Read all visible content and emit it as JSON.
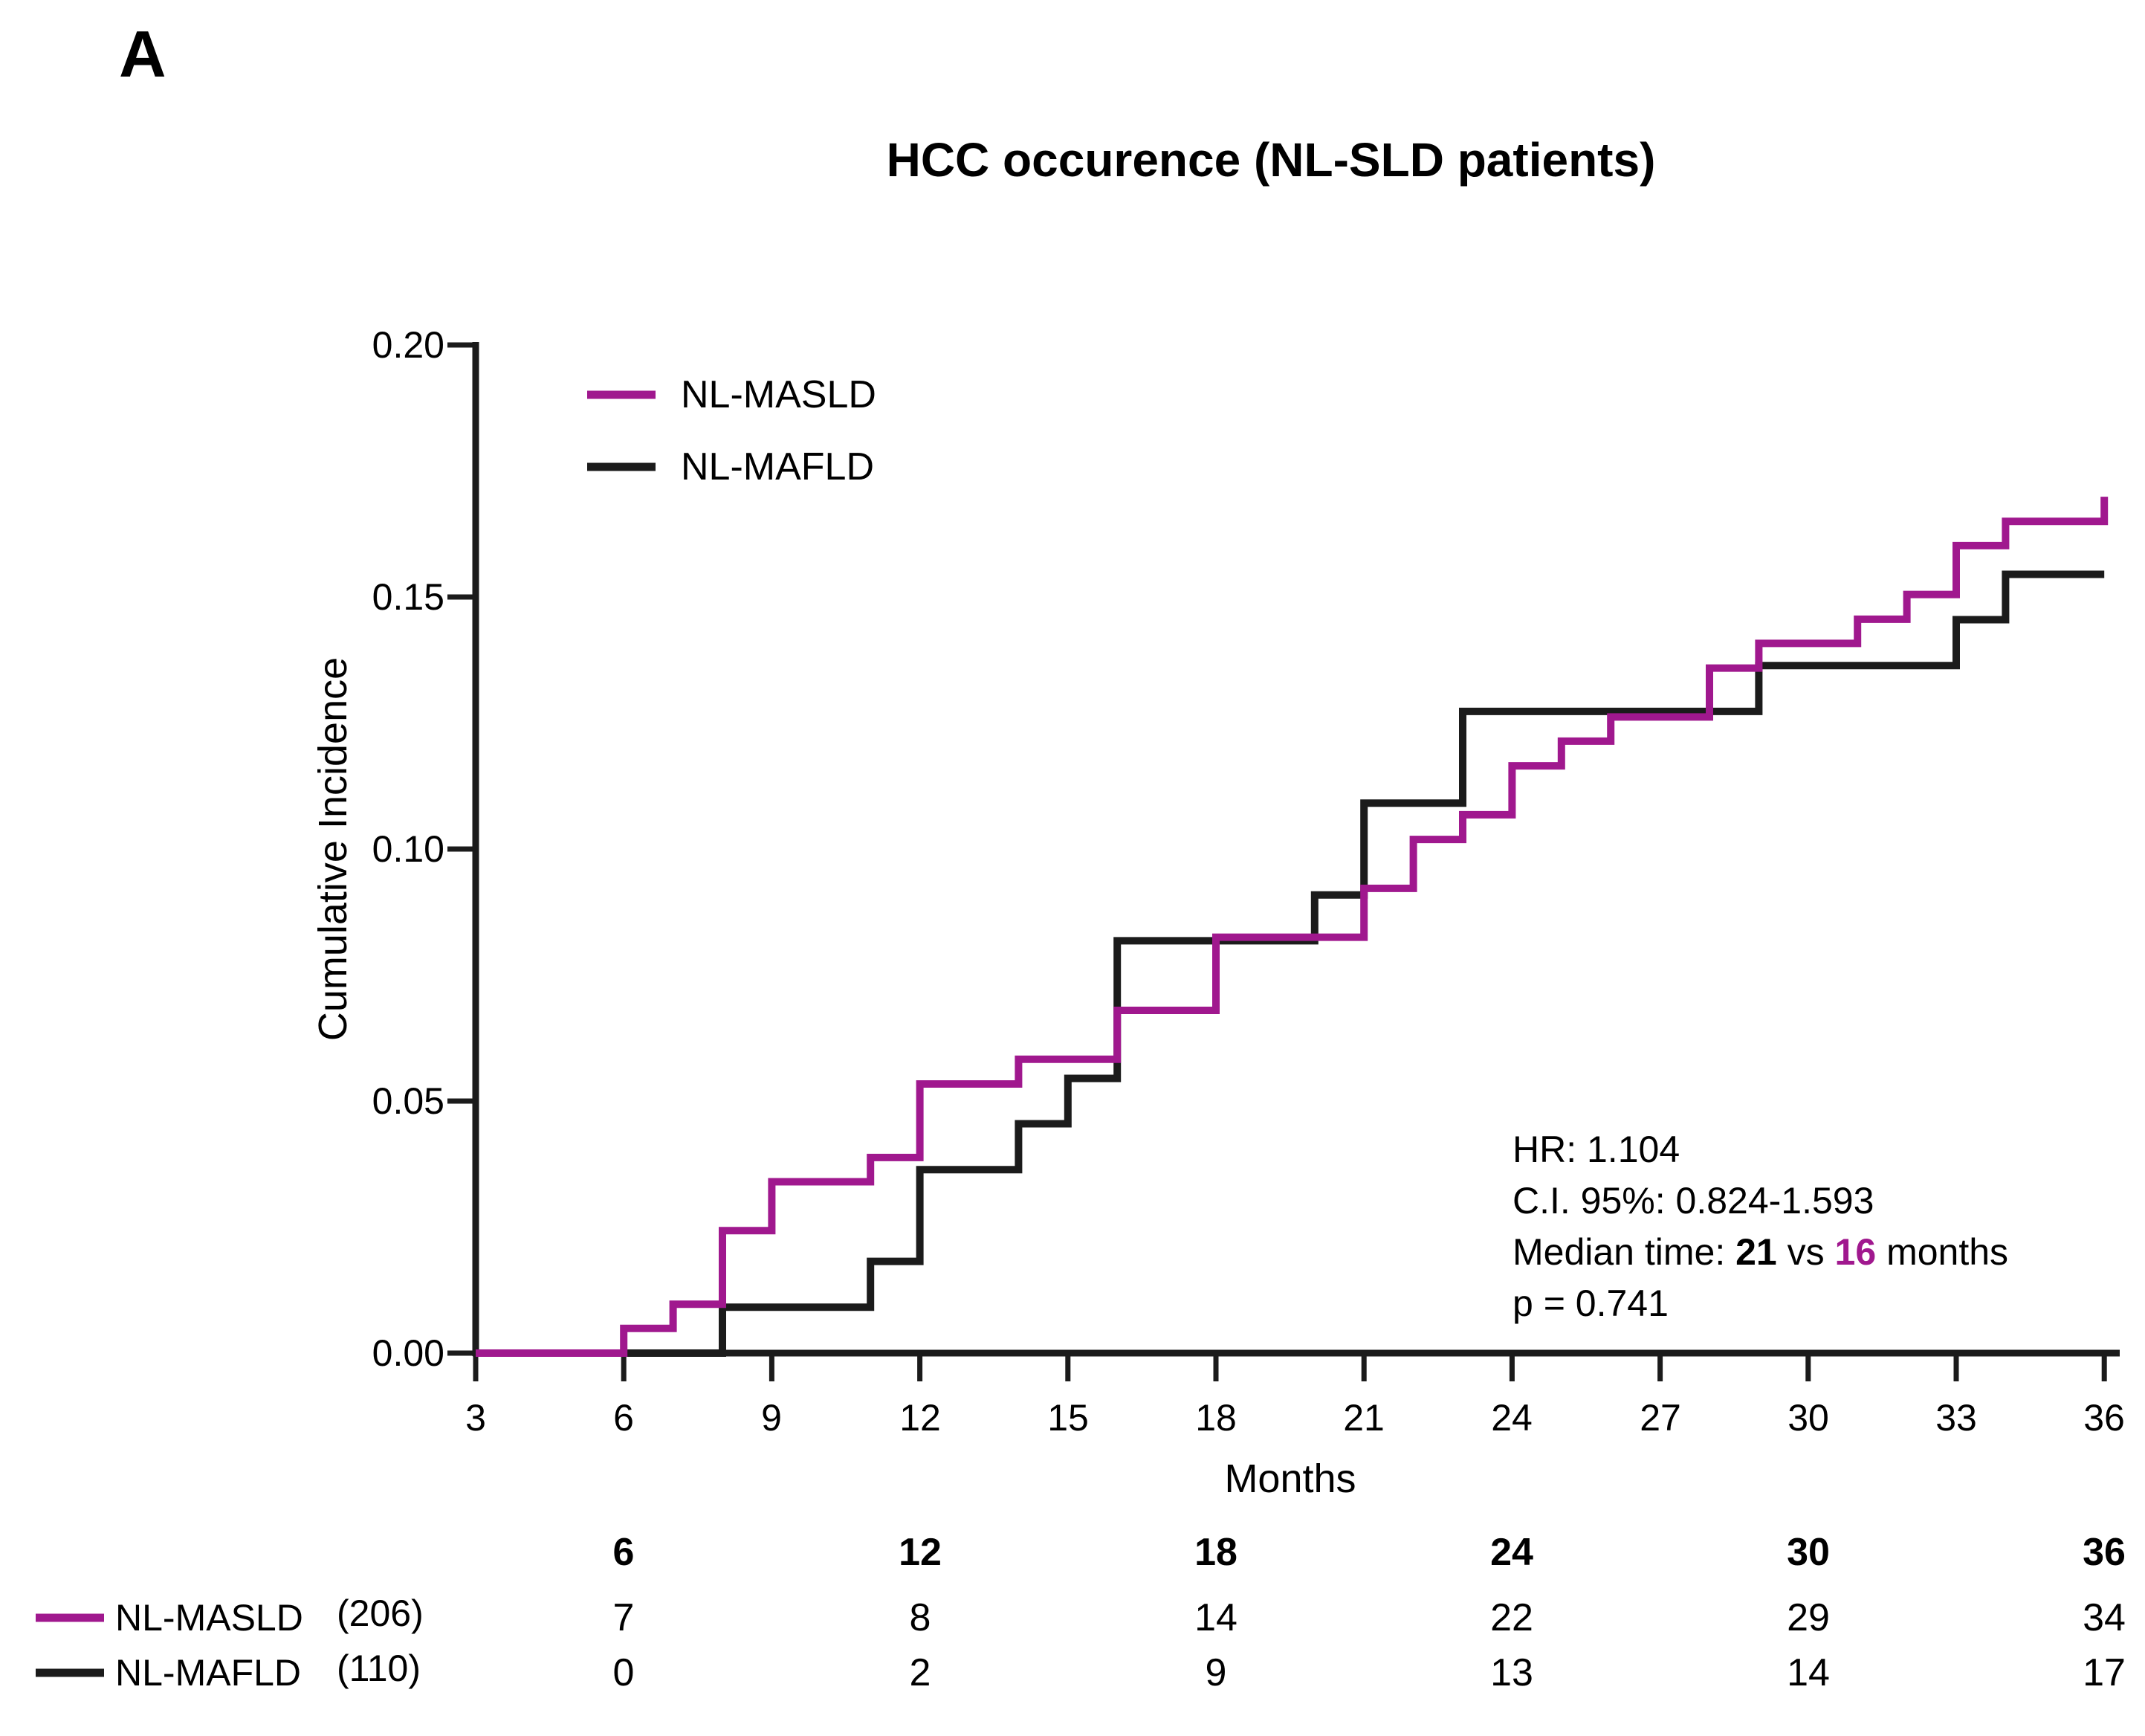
{
  "panel_label": "A",
  "title": "HCC occurence (NL-SLD patients)",
  "legend": {
    "items": [
      {
        "label": "NL-MASLD",
        "color": "#A0188E"
      },
      {
        "label": "NL-MAFLD",
        "color": "#1B1B1B"
      }
    ]
  },
  "y_axis": {
    "label": "Cumulative Incidence",
    "tick_labels": [
      "0.00",
      "0.05",
      "0.10",
      "0.15",
      "0.20"
    ],
    "tick_values": [
      0.0,
      0.05,
      0.1,
      0.15,
      0.2
    ]
  },
  "x_axis": {
    "label": "Months",
    "tick_labels": [
      "3",
      "6",
      "9",
      "12",
      "15",
      "18",
      "21",
      "24",
      "27",
      "30",
      "33",
      "36"
    ],
    "tick_values": [
      3,
      6,
      9,
      12,
      15,
      18,
      21,
      24,
      27,
      30,
      33,
      36
    ]
  },
  "annotation": {
    "hr": "HR: 1.104",
    "ci": "C.I. 95%: 0.824-1.593",
    "median_prefix": "Median time: ",
    "median_masld_months": "21",
    "median_vs": " vs ",
    "median_mafld_months": "16",
    "median_suffix": " months",
    "p": "p = 0.741"
  },
  "risk_table": {
    "column_headers": [
      "6",
      "12",
      "18",
      "24",
      "30",
      "36"
    ],
    "rows": [
      {
        "label": "NL-MASLD",
        "n": "(206)",
        "color": "#A0188E",
        "values": [
          "7",
          "8",
          "14",
          "22",
          "29",
          "34"
        ]
      },
      {
        "label": "NL-MAFLD",
        "n": "(110)",
        "color": "#1B1B1B",
        "values": [
          "0",
          "2",
          "9",
          "13",
          "14",
          "17"
        ]
      }
    ]
  },
  "chart_data": {
    "type": "line",
    "subtype": "step-cumulative-incidence",
    "title": "HCC occurence (NL-SLD patients)",
    "xlabel": "Months",
    "ylabel": "Cumulative Incidence",
    "xlim": [
      3,
      36
    ],
    "ylim": [
      0,
      0.2
    ],
    "grid": false,
    "legend_position": "upper-left-inside",
    "series": [
      {
        "name": "NL-MAFLD",
        "color": "#1B1B1B",
        "n_total": 110,
        "start": [
          3,
          0
        ],
        "steps": [
          [
            8,
            0.0091
          ],
          [
            11,
            0.0182
          ],
          [
            12,
            0.0364
          ],
          [
            14,
            0.0455
          ],
          [
            15,
            0.0545
          ],
          [
            16,
            0.0818
          ],
          [
            20,
            0.0909
          ],
          [
            21,
            0.1091
          ],
          [
            23,
            0.1273
          ],
          [
            29,
            0.1364
          ],
          [
            33,
            0.1455
          ],
          [
            34,
            0.1545
          ]
        ],
        "flat_end_month": 36
      },
      {
        "name": "NL-MASLD",
        "color": "#A0188E",
        "n_total": 206,
        "start": [
          3,
          0
        ],
        "steps": [
          [
            6,
            0.0049
          ],
          [
            7,
            0.0097
          ],
          [
            8,
            0.0243
          ],
          [
            9,
            0.034
          ],
          [
            11,
            0.0388
          ],
          [
            12,
            0.0534
          ],
          [
            14,
            0.0583
          ],
          [
            16,
            0.068
          ],
          [
            18,
            0.0825
          ],
          [
            21,
            0.0922
          ],
          [
            22,
            0.1019
          ],
          [
            23,
            0.1068
          ],
          [
            24,
            0.1165
          ],
          [
            25,
            0.1214
          ],
          [
            26,
            0.1262
          ],
          [
            28,
            0.1359
          ],
          [
            29,
            0.1408
          ],
          [
            31,
            0.1456
          ],
          [
            32,
            0.1505
          ],
          [
            33,
            0.1602
          ],
          [
            34,
            0.165
          ],
          [
            36,
            0.1699
          ]
        ],
        "flat_end_month": null
      }
    ]
  }
}
